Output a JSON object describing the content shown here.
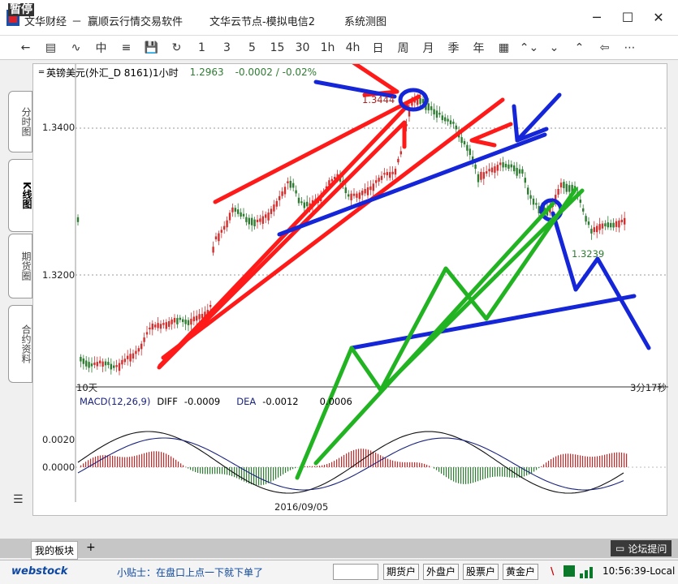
{
  "window": {
    "paused_badge": "暂停",
    "app_name": "文华财经",
    "subtitle": "赢顺云行情交易软件",
    "node": "文华云节点-模拟电信2",
    "sys": "系统测图",
    "minimize": "─",
    "maximize": "☐",
    "close": "✕"
  },
  "toolbar": {
    "items": [
      "←",
      "▤",
      "∿",
      "中",
      "≡",
      "💾",
      "↻",
      "1",
      "3",
      "5",
      "15",
      "30",
      "1h",
      "4h",
      "日",
      "周",
      "月",
      "季",
      "年",
      "▦",
      "⌃⌄",
      "⌄",
      "⌃",
      "⇦",
      "⋯"
    ]
  },
  "left_tabs": [
    {
      "label": "分时图"
    },
    {
      "label": "K线图"
    },
    {
      "label": "期货圈"
    },
    {
      "label": "合约资料"
    }
  ],
  "chart_header": {
    "symbol": "英镑美元(外汇_D 8161)1小时",
    "last": "1.2963",
    "change": "-0.0002 / -0.02%"
  },
  "price_axis": {
    "p1": "1.3400",
    "p2": "1.3200"
  },
  "annotations": {
    "high_value": "1.3444",
    "low_value": "1.3239",
    "left_corner": "10天",
    "countdown": "3分17秒",
    "date_tick": "2016/09/05"
  },
  "macd": {
    "title": "MACD(12,26,9)",
    "diff_label": "DIFF",
    "diff_value": "-0.0009",
    "dea_label": "DEA",
    "dea_value": "-0.0012",
    "macd_value": "0.0006",
    "axis_hi": "0.0020",
    "axis_zero": "0.0000"
  },
  "bottom": {
    "tab_label": "我的板块",
    "add": "+",
    "forum": "论坛提问"
  },
  "status": {
    "brand": "webstock",
    "tip": "小贴士：在盘口上点一下就下单了",
    "btn1": "期货户",
    "btn2": "外盘户",
    "btn3": "股票户",
    "btn4": "黄金户",
    "time": "10:56:39-Local"
  },
  "colors": {
    "up": "#d32f2f",
    "down": "#2e7d32",
    "red_draw": "#ff1a1a",
    "blue_draw": "#1426d8",
    "green_draw": "#22b322"
  }
}
